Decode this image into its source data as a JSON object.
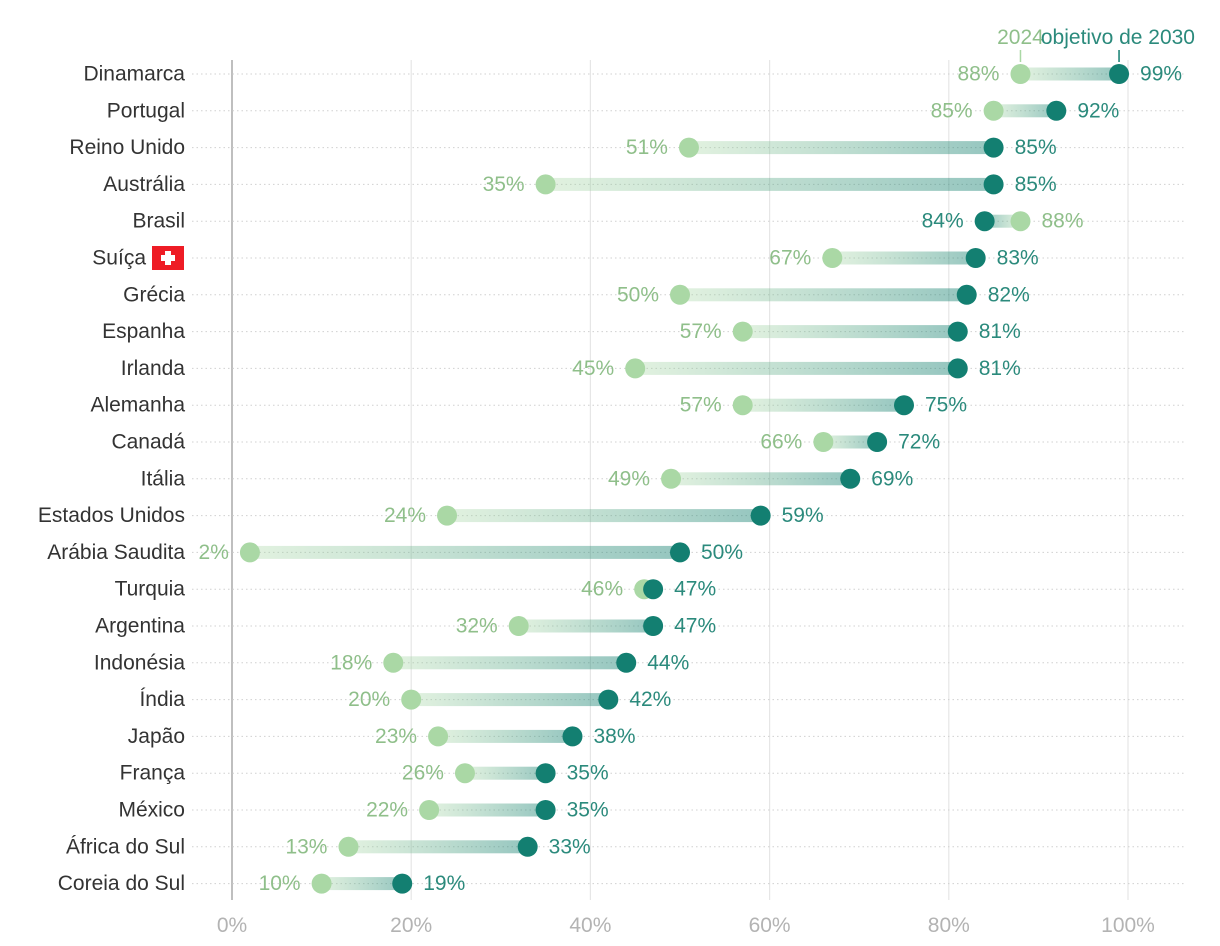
{
  "chart_data": {
    "type": "dumbbell",
    "title": "",
    "xlabel": "",
    "ylabel": "",
    "xlim": [
      0,
      100
    ],
    "ticks": [
      0,
      20,
      40,
      60,
      80,
      100
    ],
    "tick_labels": [
      "0%",
      "20%",
      "40%",
      "60%",
      "80%",
      "100%"
    ],
    "legend": {
      "start_label": "2024",
      "end_label": "objetivo de 2030",
      "placement": "top-right"
    },
    "colors": {
      "start": "#aad8a5",
      "end": "#137f71",
      "start_text": "#8fbf8a",
      "end_text": "#2b8a7c",
      "grid": "#e6e6e6",
      "axis": "#bfbfbf"
    },
    "categories": [
      "Dinamarca",
      "Portugal",
      "Reino Unido",
      "Austrália",
      "Brasil",
      "Suíça",
      "Grécia",
      "Espanha",
      "Irlanda",
      "Alemanha",
      "Canadá",
      "Itália",
      "Estados Unidos",
      "Arábia Saudita",
      "Turquia",
      "Argentina",
      "Indonésia",
      "Índia",
      "Japão",
      "França",
      "México",
      "África do Sul",
      "Coreia do Sul"
    ],
    "series": [
      {
        "name": "2024",
        "values": [
          88,
          85,
          51,
          35,
          88,
          67,
          50,
          57,
          45,
          57,
          66,
          49,
          24,
          2,
          46,
          32,
          18,
          20,
          23,
          26,
          22,
          13,
          10
        ],
        "labels": [
          "88%",
          "85%",
          "51%",
          "35%",
          "88%",
          "67%",
          "50%",
          "57%",
          "45%",
          "57%",
          "66%",
          "49%",
          "24%",
          "2%",
          "46%",
          "32%",
          "18%",
          "20%",
          "23%",
          "26%",
          "22%",
          "13%",
          "10%"
        ]
      },
      {
        "name": "objetivo de 2030",
        "values": [
          99,
          92,
          85,
          85,
          84,
          83,
          82,
          81,
          81,
          75,
          72,
          69,
          59,
          50,
          47,
          47,
          44,
          42,
          38,
          35,
          35,
          33,
          19
        ],
        "labels": [
          "99%",
          "92%",
          "85%",
          "85%",
          "84%",
          "83%",
          "82%",
          "81%",
          "81%",
          "75%",
          "72%",
          "69%",
          "59%",
          "50%",
          "47%",
          "47%",
          "44%",
          "42%",
          "38%",
          "35%",
          "35%",
          "33%",
          "19%"
        ]
      }
    ],
    "highlight": {
      "category": "Suíça",
      "icon": "swiss-flag-icon",
      "color": "#ee1c25"
    }
  }
}
